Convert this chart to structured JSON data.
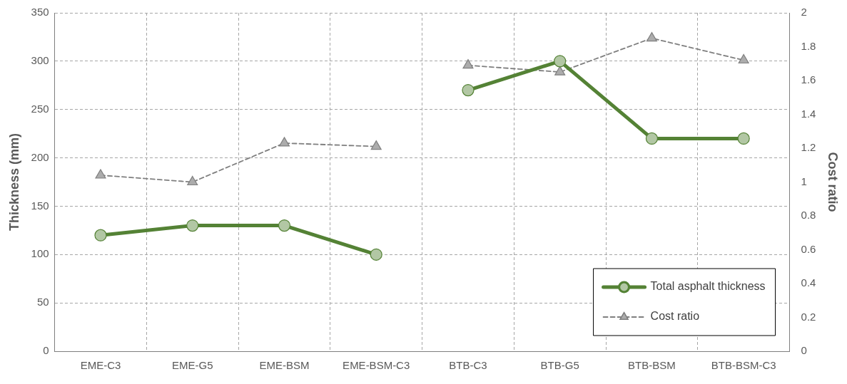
{
  "chart_data": {
    "type": "line",
    "ylabel": "Thickness (mm)",
    "y2label": "Cost ratio",
    "categories": [
      "EME-C3",
      "EME-G5",
      "EME-BSM",
      "EME-BSM-C3",
      "BTB-C3",
      "BTB-G5",
      "BTB-BSM",
      "BTB-BSM-C3"
    ],
    "series": [
      {
        "name": "Total asphalt thickness",
        "color": "#548235",
        "marker": "circle",
        "line_style": "solid",
        "values": [
          120,
          130,
          130,
          100,
          null,
          null,
          null,
          null
        ]
      },
      {
        "color": "#548235",
        "marker": "circle",
        "line_style": "solid",
        "values": [
          null,
          null,
          null,
          null,
          270,
          300,
          220,
          220
        ]
      },
      {
        "name": "Cost ratio",
        "color": "#7f7f7f",
        "marker": "triangle",
        "line_style": "dashed",
        "axis": "y2",
        "values": [
          1.04,
          1.0,
          1.23,
          1.21,
          null,
          null,
          null,
          null
        ]
      },
      {
        "color": "#7f7f7f",
        "marker": "triangle",
        "line_style": "dashed",
        "axis": "y2",
        "values": [
          null,
          null,
          null,
          null,
          1.69,
          1.65,
          1.85,
          1.72
        ]
      }
    ],
    "ylim": [
      0,
      350
    ],
    "yticks": [
      0,
      50,
      100,
      150,
      200,
      250,
      300,
      350
    ],
    "y2lim": [
      0,
      2
    ],
    "y2ticks": [
      0,
      0.2,
      0.4,
      0.6,
      0.8,
      1,
      1.2,
      1.4,
      1.6,
      1.8,
      2
    ],
    "grid": true,
    "legend": "bottom right"
  }
}
